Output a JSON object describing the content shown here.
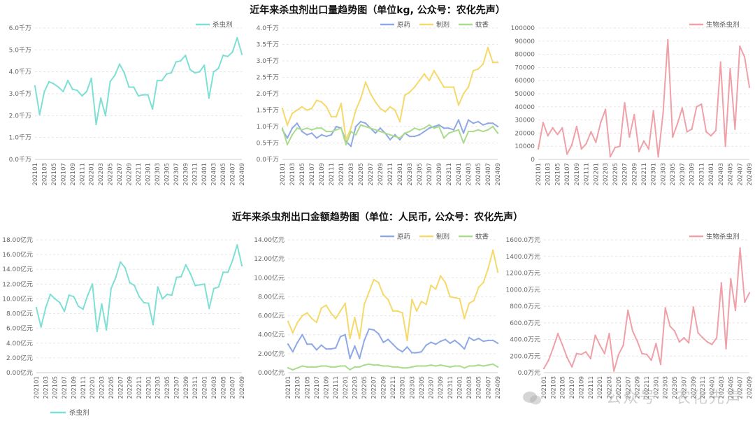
{
  "titles": {
    "top": "近年来杀虫剂出口量趋势图（单位kg, 公众号：农化先声）",
    "bottom": "近年来杀虫剂出口金额趋势图（单位：人民币, 公众号：农化先声）"
  },
  "watermark": "公众号 · 农化先声",
  "colors": {
    "cyan": "#7ee0d4",
    "blue": "#8fa9e6",
    "yellow": "#f5d96b",
    "green": "#a9dc8c",
    "pink": "#f0a0a8"
  },
  "chart_data": [
    {
      "id": "vol-total",
      "type": "line",
      "x": [
        "202101",
        "202102",
        "202103",
        "202104",
        "202105",
        "202106",
        "202107",
        "202108",
        "202109",
        "202110",
        "202111",
        "202112",
        "202201",
        "202202",
        "202203",
        "202204",
        "202205",
        "202206",
        "202207",
        "202208",
        "202209",
        "202210",
        "202211",
        "202212",
        "202301",
        "202302",
        "202303",
        "202304",
        "202305",
        "202306",
        "202307",
        "202308",
        "202309",
        "202310",
        "202311",
        "202312",
        "202401",
        "202402",
        "202403",
        "202404",
        "202405",
        "202406",
        "202407",
        "202408",
        "202409"
      ],
      "xticks": [
        "202101",
        "202103",
        "202105",
        "202107",
        "202109",
        "202111",
        "202201",
        "202203",
        "202205",
        "202207",
        "202209",
        "202211",
        "202301",
        "202303",
        "202305",
        "202307",
        "202309",
        "202311",
        "202401",
        "202403",
        "202405",
        "202407",
        "202409"
      ],
      "yticks": [
        "0.0千万",
        "1.0千万",
        "2.0千万",
        "3.0千万",
        "4.0千万",
        "5.0千万",
        "6.0千万"
      ],
      "ylim": [
        0,
        6
      ],
      "legend_position": "top-right",
      "series": [
        {
          "name": "杀虫剂",
          "color": "#7ee0d4",
          "values": [
            3.35,
            2.05,
            3.1,
            3.55,
            3.45,
            3.3,
            3.1,
            3.6,
            3.2,
            3.15,
            2.9,
            3.1,
            3.7,
            1.6,
            2.8,
            2.0,
            3.55,
            3.85,
            4.35,
            3.95,
            3.3,
            3.3,
            2.9,
            2.95,
            2.95,
            2.3,
            3.6,
            3.6,
            3.9,
            3.95,
            4.45,
            4.5,
            4.75,
            4.1,
            3.95,
            4.0,
            4.3,
            2.8,
            4.0,
            4.15,
            4.75,
            4.7,
            4.9,
            5.55,
            4.8
          ]
        }
      ]
    },
    {
      "id": "vol-split",
      "type": "line",
      "x": [
        "202101",
        "202102",
        "202103",
        "202104",
        "202105",
        "202106",
        "202107",
        "202108",
        "202109",
        "202110",
        "202111",
        "202112",
        "202201",
        "202202",
        "202203",
        "202204",
        "202205",
        "202206",
        "202207",
        "202208",
        "202209",
        "202210",
        "202211",
        "202212",
        "202301",
        "202302",
        "202303",
        "202304",
        "202305",
        "202306",
        "202307",
        "202308",
        "202309",
        "202310",
        "202311",
        "202312",
        "202401",
        "202402",
        "202403",
        "202404",
        "202405",
        "202406",
        "202407",
        "202408",
        "202409"
      ],
      "xticks": [
        "202101",
        "202103",
        "202105",
        "202107",
        "202109",
        "202111",
        "202201",
        "202203",
        "202205",
        "202207",
        "202209",
        "202211",
        "202301",
        "202303",
        "202305",
        "202307",
        "202309",
        "202311",
        "202401",
        "202403",
        "202405",
        "202407",
        "202409"
      ],
      "yticks": [
        "0.0千万",
        "0.5千万",
        "1.0千万",
        "1.5千万",
        "2.0千万",
        "2.5千万",
        "3.0千万",
        "3.5千万",
        "4.0千万"
      ],
      "ylim": [
        0,
        4
      ],
      "legend_position": "top-right",
      "series": [
        {
          "name": "原药",
          "color": "#8fa9e6",
          "values": [
            0.9,
            0.65,
            0.95,
            1.1,
            0.85,
            0.75,
            0.8,
            0.65,
            0.75,
            0.7,
            0.75,
            1.0,
            0.95,
            0.55,
            0.4,
            1.0,
            1.15,
            1.1,
            0.95,
            0.8,
            0.95,
            0.8,
            0.6,
            0.75,
            0.6,
            0.8,
            0.7,
            0.7,
            0.75,
            0.85,
            0.95,
            1.0,
            1.05,
            0.95,
            0.95,
            0.9,
            1.2,
            0.8,
            1.2,
            1.1,
            1.15,
            1.05,
            1.1,
            1.1,
            1.0
          ]
        },
        {
          "name": "制剂",
          "color": "#f5d96b",
          "values": [
            1.55,
            1.05,
            1.4,
            1.5,
            1.6,
            1.5,
            1.55,
            1.8,
            1.75,
            1.6,
            1.3,
            1.3,
            1.7,
            0.6,
            0.95,
            1.5,
            1.85,
            2.35,
            2.0,
            1.75,
            1.55,
            1.45,
            1.6,
            1.5,
            1.15,
            1.95,
            2.05,
            2.2,
            2.4,
            2.6,
            2.4,
            2.7,
            2.45,
            2.2,
            2.2,
            2.2,
            1.65,
            2.0,
            2.2,
            2.7,
            2.75,
            2.9,
            3.4,
            2.95,
            2.95
          ]
        },
        {
          "name": "蚊香",
          "color": "#a9dc8c",
          "values": [
            0.95,
            0.45,
            0.75,
            0.95,
            0.9,
            0.95,
            0.9,
            0.95,
            0.95,
            0.85,
            0.85,
            0.9,
            0.95,
            0.45,
            0.85,
            0.75,
            1.05,
            1.0,
            0.95,
            0.9,
            0.85,
            0.8,
            0.75,
            0.7,
            0.65,
            0.8,
            0.85,
            0.95,
            0.9,
            0.95,
            1.05,
            0.95,
            1.0,
            0.65,
            0.8,
            0.85,
            0.9,
            0.5,
            0.85,
            0.85,
            0.9,
            0.85,
            0.9,
            1.0,
            0.8
          ]
        }
      ]
    },
    {
      "id": "vol-bio",
      "type": "line",
      "x": [
        "202101",
        "202102",
        "202103",
        "202104",
        "202105",
        "202106",
        "202107",
        "202108",
        "202109",
        "202110",
        "202111",
        "202112",
        "202201",
        "202202",
        "202203",
        "202204",
        "202205",
        "202206",
        "202207",
        "202208",
        "202209",
        "202210",
        "202211",
        "202212",
        "202301",
        "202302",
        "202303",
        "202304",
        "202305",
        "202306",
        "202307",
        "202308",
        "202309",
        "202310",
        "202311",
        "202312",
        "202401",
        "202402",
        "202403",
        "202404",
        "202405",
        "202406",
        "202407",
        "202408",
        "202409"
      ],
      "xticks": [
        "202101",
        "202103",
        "202105",
        "202107",
        "202109",
        "202111",
        "202201",
        "202203",
        "202205",
        "202207",
        "202209",
        "202211",
        "202301",
        "202303",
        "202305",
        "202307",
        "202309",
        "202311",
        "202401",
        "202403",
        "202405",
        "202407",
        "202409"
      ],
      "yticks": [
        "0",
        "10000",
        "20000",
        "30000",
        "40000",
        "50000",
        "60000",
        "70000",
        "80000",
        "90000",
        "100000"
      ],
      "ylim": [
        0,
        100000
      ],
      "legend_position": "top-right",
      "series": [
        {
          "name": "生物杀虫剂",
          "color": "#f0a0a8",
          "values": [
            8000,
            28000,
            18000,
            24000,
            19000,
            24000,
            4000,
            11000,
            25000,
            8000,
            12000,
            21000,
            13000,
            28000,
            38000,
            2000,
            9000,
            10000,
            43000,
            17000,
            34000,
            6000,
            14000,
            8000,
            37000,
            2000,
            35000,
            91000,
            17000,
            27000,
            39000,
            21000,
            23000,
            40000,
            42000,
            21000,
            18000,
            22000,
            74000,
            10000,
            69000,
            23000,
            86000,
            78000,
            55000
          ]
        }
      ]
    },
    {
      "id": "val-total",
      "type": "line",
      "x": [
        "202101",
        "202102",
        "202103",
        "202104",
        "202105",
        "202106",
        "202107",
        "202108",
        "202109",
        "202110",
        "202111",
        "202112",
        "202201",
        "202202",
        "202203",
        "202204",
        "202205",
        "202206",
        "202207",
        "202208",
        "202209",
        "202210",
        "202211",
        "202212",
        "202301",
        "202302",
        "202303",
        "202304",
        "202305",
        "202306",
        "202307",
        "202308",
        "202309",
        "202310",
        "202311",
        "202312",
        "202401",
        "202402",
        "202403",
        "202404",
        "202405",
        "202406",
        "202407",
        "202408",
        "202409"
      ],
      "xticks": [
        "202101",
        "202103",
        "202105",
        "202107",
        "202109",
        "202111",
        "202201",
        "202203",
        "202205",
        "202207",
        "202209",
        "202211",
        "202301",
        "202303",
        "202305",
        "202307",
        "202309",
        "202311",
        "202401",
        "202403",
        "202405",
        "202407",
        "202409"
      ],
      "yticks": [
        "0.00亿元",
        "2.00亿元",
        "4.00亿元",
        "6.00亿元",
        "8.00亿元",
        "10.00亿元",
        "12.00亿元",
        "14.00亿元",
        "16.00亿元",
        "18.00亿元"
      ],
      "ylim": [
        0,
        18
      ],
      "legend_position": "bottom-left",
      "series": [
        {
          "name": "杀虫剂",
          "color": "#7ee0d4",
          "values": [
            8.8,
            6.2,
            8.8,
            10.6,
            10.0,
            9.5,
            8.3,
            10.5,
            10.3,
            9.0,
            8.6,
            10.5,
            12.0,
            5.6,
            9.3,
            5.8,
            11.4,
            12.9,
            15.0,
            14.2,
            12.2,
            11.8,
            10.3,
            9.5,
            9.4,
            6.5,
            11.6,
            10.0,
            10.6,
            10.5,
            12.9,
            13.0,
            14.6,
            13.4,
            11.8,
            11.9,
            12.0,
            8.7,
            11.4,
            11.6,
            13.6,
            13.6,
            15.2,
            17.3,
            14.5
          ]
        }
      ]
    },
    {
      "id": "val-split",
      "type": "line",
      "x": [
        "202101",
        "202102",
        "202103",
        "202104",
        "202105",
        "202106",
        "202107",
        "202108",
        "202109",
        "202110",
        "202111",
        "202112",
        "202201",
        "202202",
        "202203",
        "202204",
        "202205",
        "202206",
        "202207",
        "202208",
        "202209",
        "202210",
        "202211",
        "202212",
        "202301",
        "202302",
        "202303",
        "202304",
        "202305",
        "202306",
        "202307",
        "202308",
        "202309",
        "202310",
        "202311",
        "202312",
        "202401",
        "202402",
        "202403",
        "202404",
        "202405",
        "202406",
        "202407",
        "202408",
        "202409"
      ],
      "xticks": [
        "202101",
        "202103",
        "202105",
        "202107",
        "202109",
        "202111",
        "202201",
        "202203",
        "202205",
        "202207",
        "202209",
        "202211",
        "202301",
        "202303",
        "202305",
        "202307",
        "202309",
        "202311",
        "202401",
        "202403",
        "202405",
        "202407",
        "202409"
      ],
      "yticks": [
        "0.00亿元",
        "2.00亿元",
        "4.00亿元",
        "6.00亿元",
        "8.00亿元",
        "10.00亿元",
        "12.00亿元",
        "14.00亿元"
      ],
      "ylim": [
        0,
        14
      ],
      "legend_position": "top-right",
      "series": [
        {
          "name": "原药",
          "color": "#8fa9e6",
          "values": [
            3.0,
            2.2,
            3.2,
            4.0,
            3.0,
            3.0,
            2.4,
            2.9,
            2.5,
            2.5,
            2.6,
            3.8,
            4.0,
            1.5,
            2.8,
            1.5,
            3.4,
            4.6,
            4.5,
            4.1,
            3.2,
            3.5,
            3.0,
            2.5,
            2.2,
            2.7,
            2.1,
            2.1,
            2.2,
            2.9,
            3.2,
            3.0,
            3.3,
            3.5,
            3.1,
            3.4,
            3.0,
            2.5,
            3.7,
            3.4,
            3.6,
            3.3,
            3.4,
            3.4,
            3.1
          ]
        },
        {
          "name": "制剂",
          "color": "#f5d96b",
          "values": [
            5.4,
            4.2,
            5.3,
            6.0,
            6.3,
            5.7,
            5.3,
            6.8,
            7.1,
            6.3,
            5.7,
            6.5,
            7.3,
            3.6,
            5.8,
            3.6,
            7.2,
            8.5,
            9.8,
            9.5,
            8.2,
            7.7,
            6.5,
            6.5,
            6.3,
            3.4,
            7.7,
            6.5,
            7.5,
            7.2,
            9.2,
            8.8,
            10.2,
            9.5,
            8.0,
            7.9,
            7.8,
            5.7,
            7.3,
            7.6,
            9.0,
            9.5,
            11.0,
            12.9,
            10.6
          ]
        },
        {
          "name": "蚊香",
          "color": "#a9dc8c",
          "values": [
            0.5,
            0.3,
            0.5,
            0.7,
            0.6,
            0.6,
            0.6,
            0.7,
            0.7,
            0.6,
            0.6,
            0.7,
            0.7,
            0.3,
            0.6,
            0.6,
            0.8,
            0.9,
            0.8,
            0.8,
            0.7,
            0.7,
            0.6,
            0.6,
            0.5,
            0.5,
            0.6,
            0.7,
            0.7,
            0.7,
            0.8,
            0.7,
            0.8,
            0.7,
            0.6,
            0.7,
            0.7,
            0.5,
            0.7,
            0.7,
            0.8,
            0.7,
            0.8,
            0.9,
            0.6
          ]
        }
      ]
    },
    {
      "id": "val-bio",
      "type": "line",
      "x": [
        "202101",
        "202102",
        "202103",
        "202104",
        "202105",
        "202106",
        "202107",
        "202108",
        "202109",
        "202110",
        "202111",
        "202112",
        "202201",
        "202202",
        "202203",
        "202204",
        "202205",
        "202206",
        "202207",
        "202208",
        "202209",
        "202210",
        "202211",
        "202212",
        "202301",
        "202302",
        "202303",
        "202304",
        "202305",
        "202306",
        "202307",
        "202308",
        "202309",
        "202310",
        "202311",
        "202312",
        "202401",
        "202402",
        "202403",
        "202404",
        "202405",
        "202406",
        "202407",
        "202408",
        "202409"
      ],
      "xticks": [
        "202101",
        "202103",
        "202105",
        "202107",
        "202109",
        "202111",
        "202201",
        "202203",
        "202205",
        "202207",
        "202209",
        "202211",
        "202301",
        "202303",
        "202305",
        "202307",
        "202309",
        "202311",
        "202401",
        "202403",
        "202405",
        "202407",
        "202409"
      ],
      "yticks": [
        "0.0万元",
        "200.0万元",
        "400.0万元",
        "600.0万元",
        "800.0万元",
        "1000.0万元",
        "1200.0万元",
        "1400.0万元",
        "1600.0万元"
      ],
      "ylim": [
        0,
        1600
      ],
      "legend_position": "top-right",
      "series": [
        {
          "name": "生物杀虫剂",
          "color": "#f0a0a8",
          "values": [
            50,
            150,
            300,
            470,
            330,
            180,
            70,
            230,
            220,
            250,
            170,
            450,
            330,
            230,
            470,
            20,
            220,
            330,
            750,
            500,
            380,
            230,
            220,
            150,
            350,
            100,
            780,
            560,
            500,
            370,
            420,
            360,
            790,
            480,
            420,
            370,
            340,
            420,
            1080,
            290,
            1130,
            750,
            1500,
            850,
            960
          ]
        }
      ]
    }
  ]
}
